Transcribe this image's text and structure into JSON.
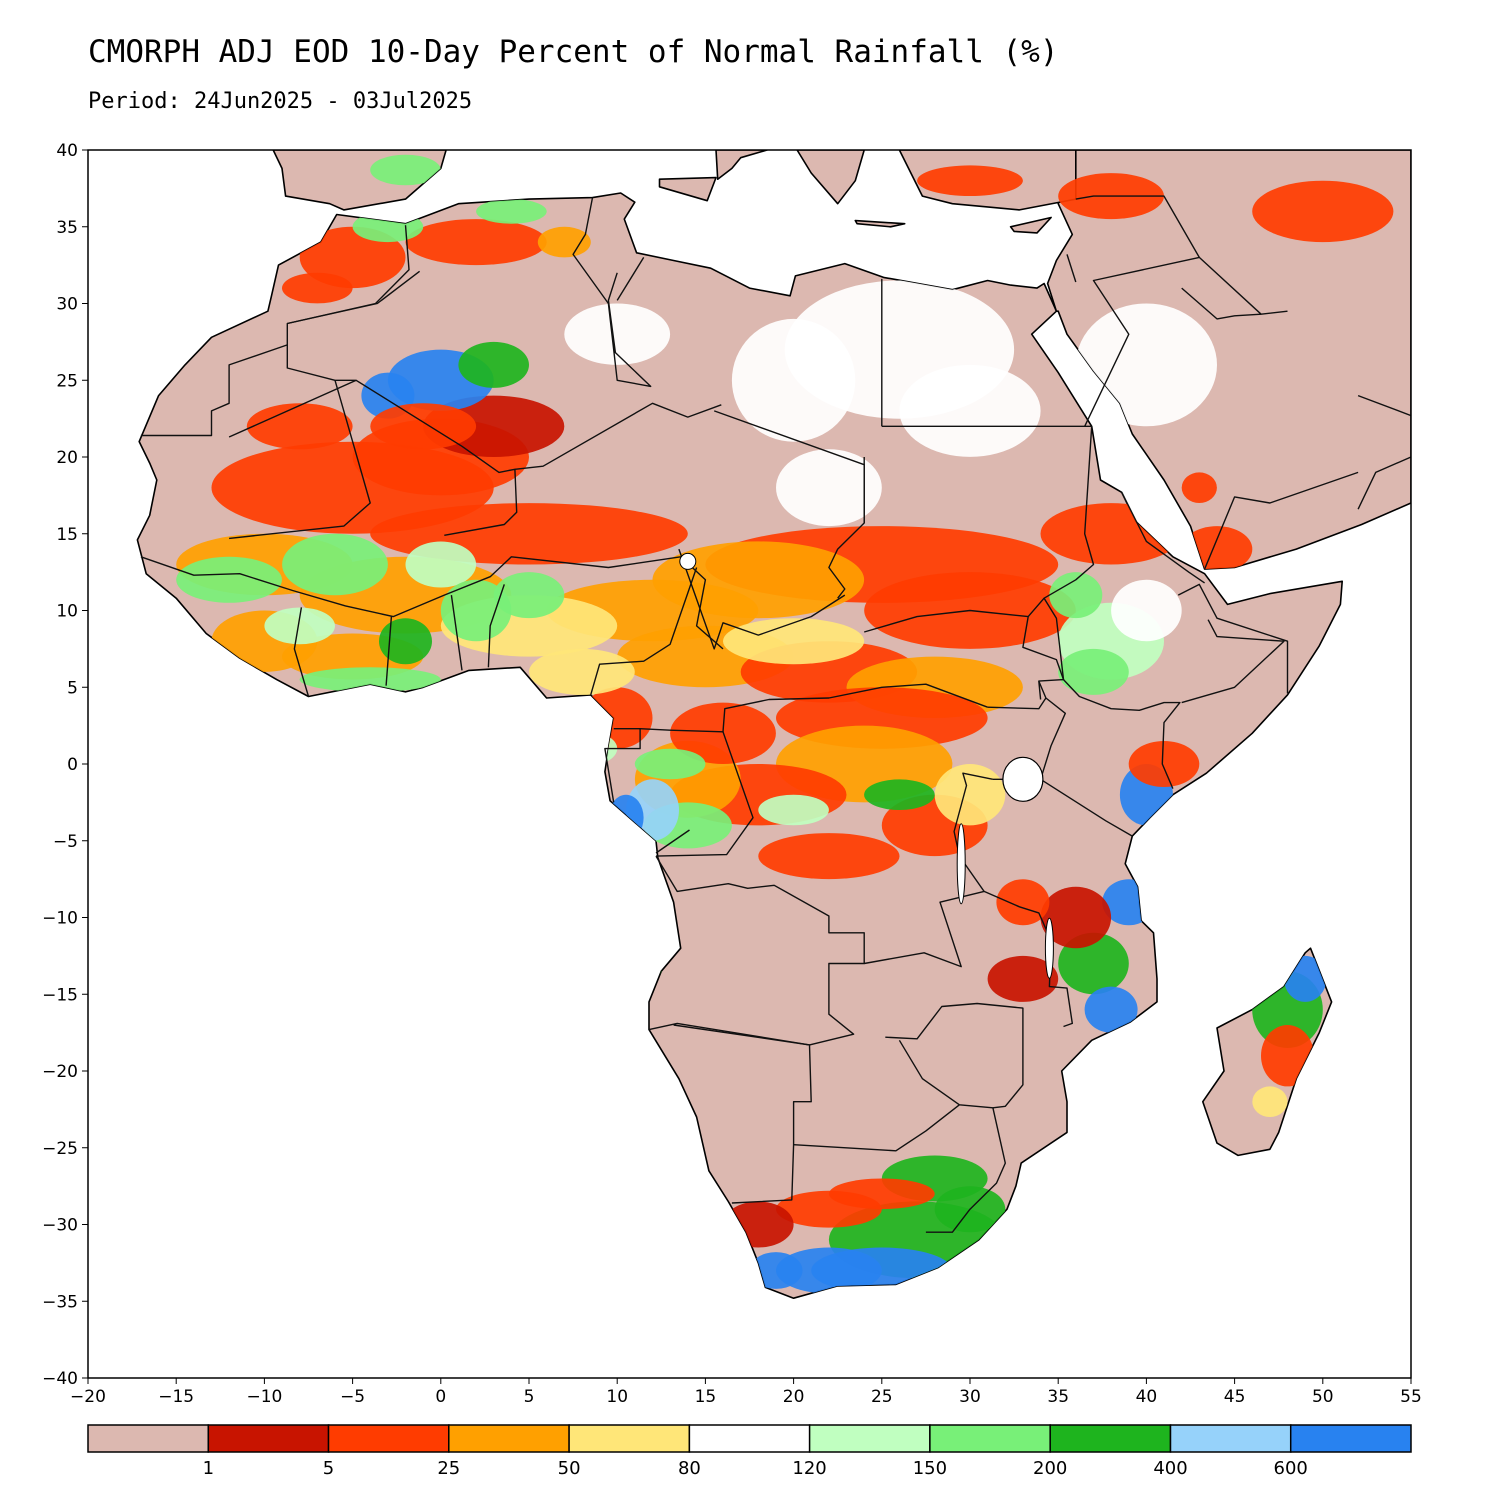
{
  "header": {
    "title": "CMORPH ADJ EOD 10-Day Percent of Normal Rainfall (%)",
    "period": "Period: 24Jun2025 - 03Jul2025"
  },
  "map": {
    "lon_range": [
      -20,
      55
    ],
    "lat_range": [
      -40,
      40
    ],
    "x_ticks": [
      -20,
      -15,
      -10,
      -5,
      0,
      5,
      10,
      15,
      20,
      25,
      30,
      35,
      40,
      45,
      50,
      55
    ],
    "y_ticks": [
      40,
      35,
      30,
      25,
      20,
      15,
      10,
      5,
      0,
      -5,
      -10,
      -15,
      -20,
      -25,
      -30,
      -35,
      -40
    ],
    "x_tick_labels": [
      "−20",
      "−15",
      "−10",
      "−5",
      "0",
      "5",
      "10",
      "15",
      "20",
      "25",
      "30",
      "35",
      "40",
      "45",
      "50",
      "55"
    ],
    "y_tick_labels": [
      "40",
      "35",
      "30",
      "25",
      "20",
      "15",
      "10",
      "5",
      "0",
      "−5",
      "−10",
      "−15",
      "−20",
      "−25",
      "−30",
      "−35",
      "−40"
    ]
  },
  "legend": {
    "colors": [
      "#dcb8b0",
      "#c81400",
      "#ff3c00",
      "#ffa000",
      "#ffe678",
      "#ffffff",
      "#c0ffc0",
      "#78f078",
      "#1eb41e",
      "#96d2fa",
      "#2882f0"
    ],
    "labels": [
      "1",
      "5",
      "25",
      "50",
      "80",
      "120",
      "150",
      "200",
      "400",
      "600"
    ]
  }
}
